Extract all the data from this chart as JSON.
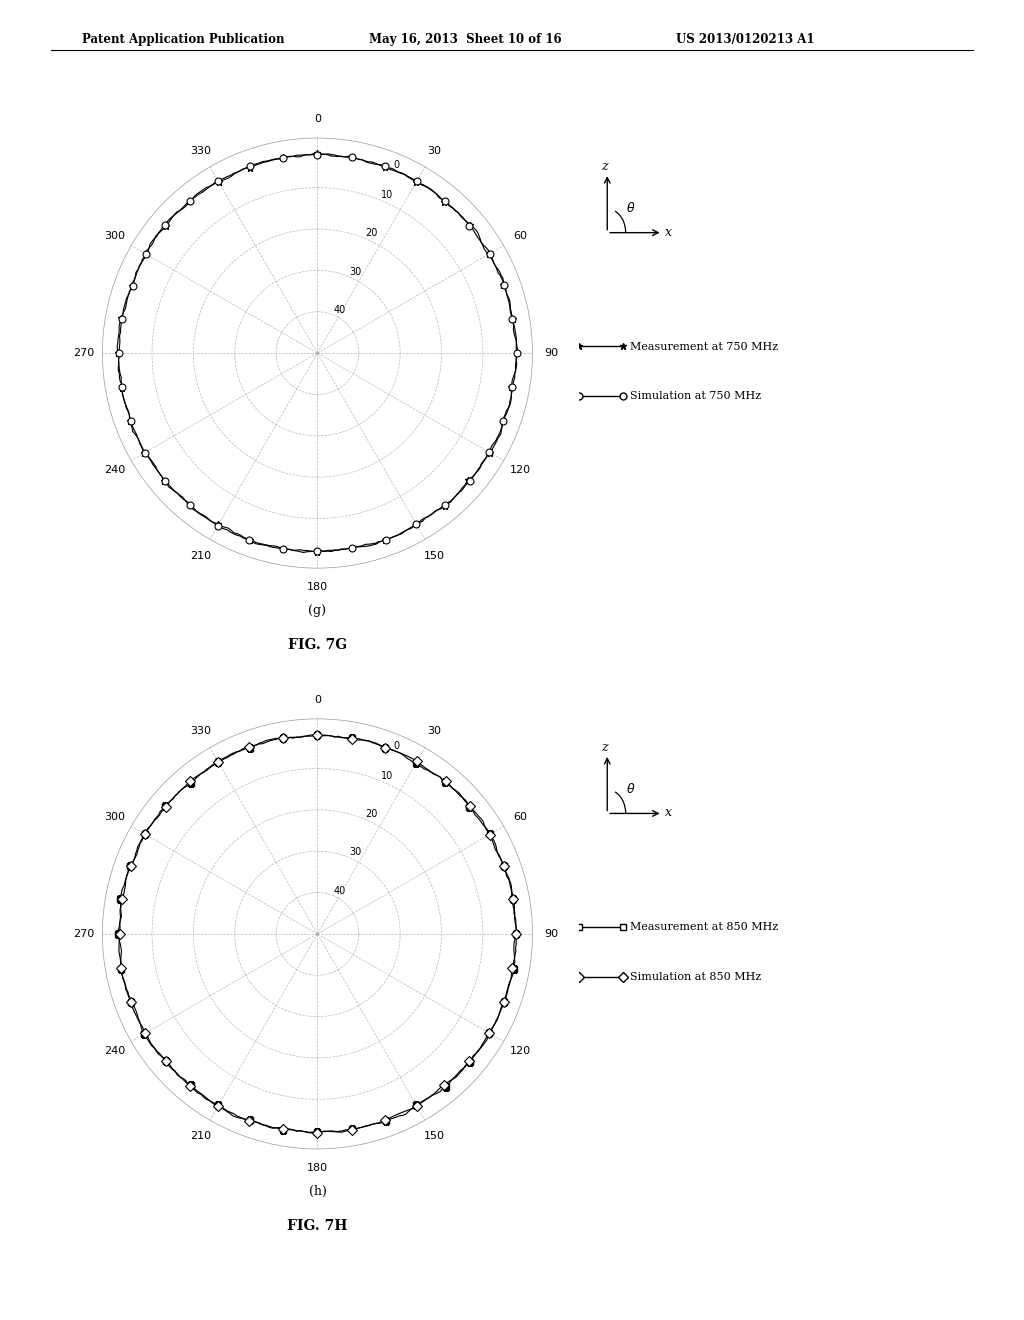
{
  "header_left": "Patent Application Publication",
  "header_mid": "May 16, 2013  Sheet 10 of 16",
  "header_right": "US 2013/0120213 A1",
  "fig_g_label": "(g)",
  "fig_g_title": "FIG. 7G",
  "fig_h_label": "(h)",
  "fig_h_title": "FIG. 7H",
  "legend_g_0": "Measurement at 750 MHz",
  "legend_g_1": "Simulation at 750 MHz",
  "legend_h_0": "Measurement at 850 MHz",
  "legend_h_1": "Simulation at 850 MHz",
  "theta_ticks_deg": [
    0,
    30,
    60,
    90,
    120,
    150,
    180,
    210,
    240,
    270,
    300,
    330
  ],
  "r_labels": [
    "0",
    "10",
    "20",
    "30",
    "40"
  ],
  "background_color": "#ffffff",
  "grid_color": "#999999",
  "marker_size": 5
}
